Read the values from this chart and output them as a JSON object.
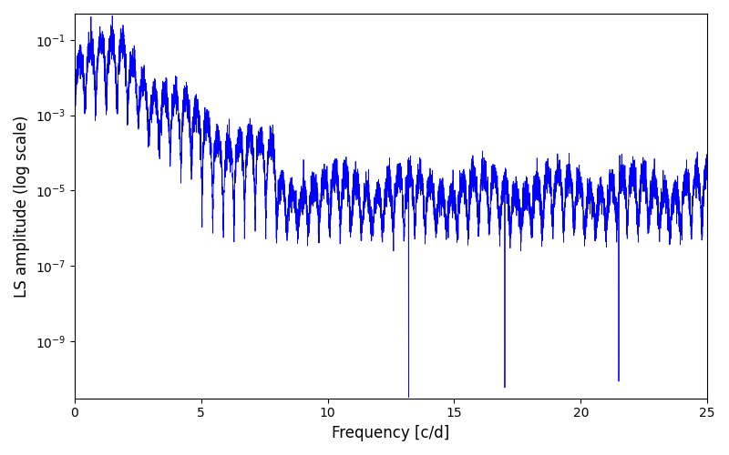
{
  "title": "",
  "xlabel": "Frequency [c/d]",
  "ylabel": "LS amplitude (log scale)",
  "xlim": [
    0,
    25
  ],
  "ylim": [
    3e-11,
    0.5
  ],
  "yticks": [
    1e-09,
    1e-07,
    1e-05,
    0.001,
    0.1
  ],
  "line_color": "#0000ff",
  "line_width": 0.6,
  "figsize": [
    8.0,
    5.0
  ],
  "dpi": 100,
  "background_color": "#ffffff",
  "seed": 42
}
